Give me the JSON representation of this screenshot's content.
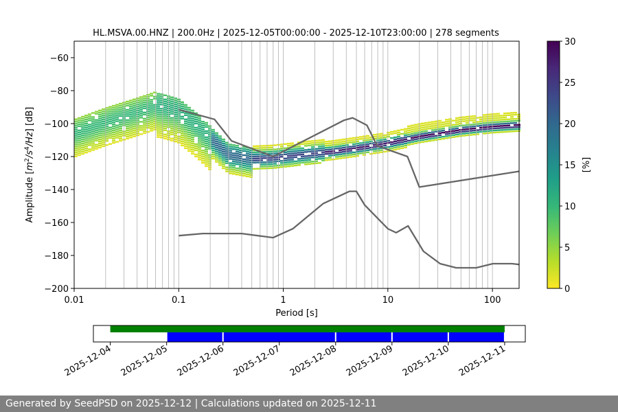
{
  "footer": {
    "text": "Generated by SeedPSD on 2025-12-12 | Calculations updated on 2025-12-11"
  },
  "chart_data": [
    {
      "type": "heatmap",
      "title": "HL.MSVA.00.HNZ | 200.0Hz | 2025-12-05T00:00:00 - 2025-12-10T23:00:00 | 278 segments",
      "xlabel": "Period [s]",
      "ylabel_parts": [
        "Amplitude [",
        "m",
        "2",
        "/",
        "s",
        "4",
        "/",
        "Hz",
        "] [dB]"
      ],
      "x_scale": "log",
      "xlim": [
        0.01,
        180
      ],
      "ylim": [
        -200,
        -50
      ],
      "x_ticks": [
        0.01,
        0.1,
        1,
        10,
        100
      ],
      "x_tick_labels": [
        "0.01",
        "0.1",
        "1",
        "10",
        "100"
      ],
      "y_ticks": [
        -200,
        -180,
        -160,
        -140,
        -120,
        -100,
        -80,
        -60
      ],
      "y_tick_labels": [
        "−200",
        "−180",
        "−160",
        "−140",
        "−120",
        "−100",
        "−80",
        "−60"
      ],
      "grid": "vertical, log-minor",
      "colorbar": {
        "label": "[%]",
        "range": [
          0,
          30
        ],
        "ticks": [
          0,
          5,
          10,
          15,
          20,
          25,
          30
        ],
        "tick_labels": [
          "0",
          "5",
          "10",
          "15",
          "20",
          "25",
          "30"
        ],
        "colormap": "viridis reversed",
        "colors": [
          "#fde725",
          "#b5de2b",
          "#6ece58",
          "#35b779",
          "#1f9e89",
          "#26828e",
          "#31688e",
          "#3e4989",
          "#482878",
          "#440154"
        ]
      },
      "noise_models": {
        "color": "#666666",
        "high_noise": {
          "period": [
            0.1,
            0.22,
            0.32,
            0.8,
            3.8,
            4.6,
            6.3,
            7.9,
            15.4,
            20,
            354.8
          ],
          "db": [
            -91.5,
            -97.4,
            -110.5,
            -120,
            -98,
            -96.5,
            -101,
            -113.5,
            -120,
            -138.5,
            -126
          ]
        },
        "low_noise": {
          "period": [
            0.1,
            0.17,
            0.4,
            0.8,
            1.24,
            2.4,
            4.3,
            5.0,
            6.0,
            10.0,
            12.0,
            15.6,
            21.9,
            31.6,
            45.0,
            70.0,
            101.0,
            154.0,
            328.0
          ],
          "db": [
            -168,
            -166.7,
            -166.7,
            -169.2,
            -163.7,
            -148.6,
            -141.1,
            -141.1,
            -149.4,
            -163.8,
            -166.2,
            -162.1,
            -177.5,
            -185,
            -187.5,
            -187.5,
            -185,
            -185,
            -187.5
          ]
        }
      },
      "psd_density": {
        "mode_curve": {
          "period": [
            0.01,
            0.02,
            0.04,
            0.065,
            0.1,
            0.15,
            0.22,
            0.3,
            0.5,
            0.8,
            1.5,
            3,
            5,
            10,
            20,
            50,
            100,
            180
          ],
          "db": [
            -106,
            -99,
            -93,
            -88.5,
            -92,
            -101,
            -111,
            -119,
            -121.5,
            -121,
            -119,
            -117,
            -115,
            -112,
            -108,
            -104,
            -102,
            -101
          ]
        }
      }
    },
    {
      "type": "timeline",
      "x_tick_labels": [
        "2025-12-04",
        "2025-12-05",
        "2025-12-06",
        "2025-12-07",
        "2025-12-08",
        "2025-12-09",
        "2025-12-10",
        "2025-12-11"
      ],
      "xlim": [
        "2025-12-03T16:48:00",
        "2025-12-11T08:48:00"
      ],
      "available": {
        "color": "#008000",
        "start": "2025-12-04T00:00:00",
        "end": "2025-12-11T00:00:00"
      },
      "processed": {
        "color": "#0000ff",
        "segments": [
          {
            "start": "2025-12-05T00:00:00",
            "end": "2025-12-06T00:00:00"
          },
          {
            "start": "2025-12-06T00:00:00",
            "end": "2025-12-08T00:00:00"
          },
          {
            "start": "2025-12-08T00:00:00",
            "end": "2025-12-09T00:00:00"
          },
          {
            "start": "2025-12-09T00:00:00",
            "end": "2025-12-10T00:00:00"
          },
          {
            "start": "2025-12-10T00:00:00",
            "end": "2025-12-11T00:00:00"
          }
        ]
      }
    }
  ]
}
